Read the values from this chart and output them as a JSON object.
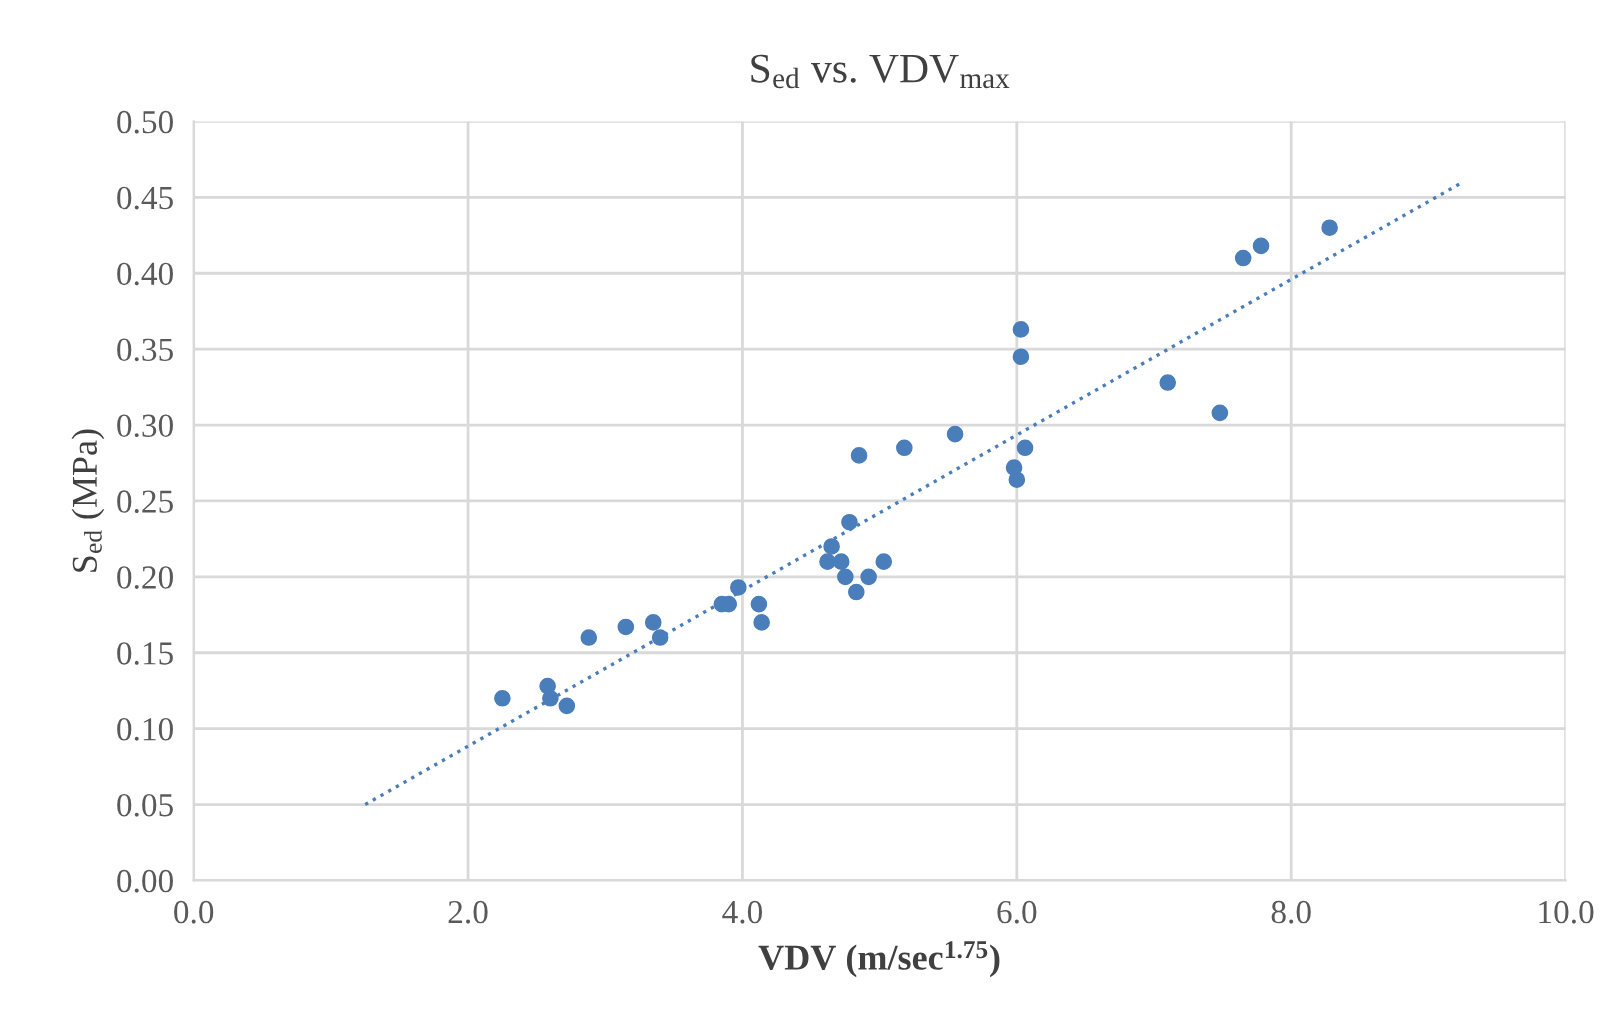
{
  "chart_data": {
    "type": "scatter",
    "title": "S$_{ed}$ vs. VDV$_{max}$",
    "xlabel": "VDV (m/sec$^{1.75}$)",
    "ylabel": "S$_{ed}$ (MPa)",
    "xlim": [
      0,
      10
    ],
    "xticks": [
      {
        "value": 0,
        "label": "0.0"
      },
      {
        "value": 2,
        "label": "2.0"
      },
      {
        "value": 4,
        "label": "4.0"
      },
      {
        "value": 6,
        "label": "6.0"
      },
      {
        "value": 8,
        "label": "8.0"
      },
      {
        "value": 10,
        "label": "10.0"
      }
    ],
    "ylim": [
      0,
      0.5
    ],
    "yticks": [
      {
        "value": 0,
        "label": "0.00"
      },
      {
        "value": 0.05,
        "label": "0.05"
      },
      {
        "value": 0.1,
        "label": "0.10"
      },
      {
        "value": 0.15,
        "label": "0.15"
      },
      {
        "value": 0.2,
        "label": "0.20"
      },
      {
        "value": 0.25,
        "label": "0.25"
      },
      {
        "value": 0.3,
        "label": "0.30"
      },
      {
        "value": 0.35,
        "label": "0.35"
      },
      {
        "value": 0.4,
        "label": "0.40"
      },
      {
        "value": 0.45,
        "label": "0.45"
      },
      {
        "value": 0.5,
        "label": "0.50"
      }
    ],
    "grid": true,
    "legend": false,
    "series": [
      {
        "color": "#4a7ebb",
        "marker": "circle",
        "x": [
          2.25,
          2.58,
          2.6,
          2.72,
          2.88,
          3.15,
          3.35,
          3.4,
          3.85,
          3.9,
          3.97,
          4.12,
          4.14,
          4.62,
          4.65,
          4.72,
          4.75,
          4.78,
          4.83,
          4.85,
          4.92,
          5.03,
          5.18,
          5.55,
          5.98,
          6.0,
          6.03,
          6.03,
          6.06,
          7.1,
          7.48,
          7.65,
          7.78,
          8.28
        ],
        "values": [
          0.12,
          0.128,
          0.12,
          0.115,
          0.16,
          0.167,
          0.17,
          0.16,
          0.182,
          0.182,
          0.193,
          0.182,
          0.17,
          0.21,
          0.22,
          0.21,
          0.2,
          0.236,
          0.19,
          0.28,
          0.2,
          0.21,
          0.285,
          0.294,
          0.272,
          0.264,
          0.363,
          0.345,
          0.285,
          0.328,
          0.308,
          0.41,
          0.418,
          0.43
        ]
      },
      {
        "type": "line",
        "color": "#4a7ebb",
        "line_style": "dotted",
        "marker": "none",
        "x": [
          1.25,
          9.25
        ],
        "values": [
          0.05,
          0.46
        ]
      }
    ]
  }
}
